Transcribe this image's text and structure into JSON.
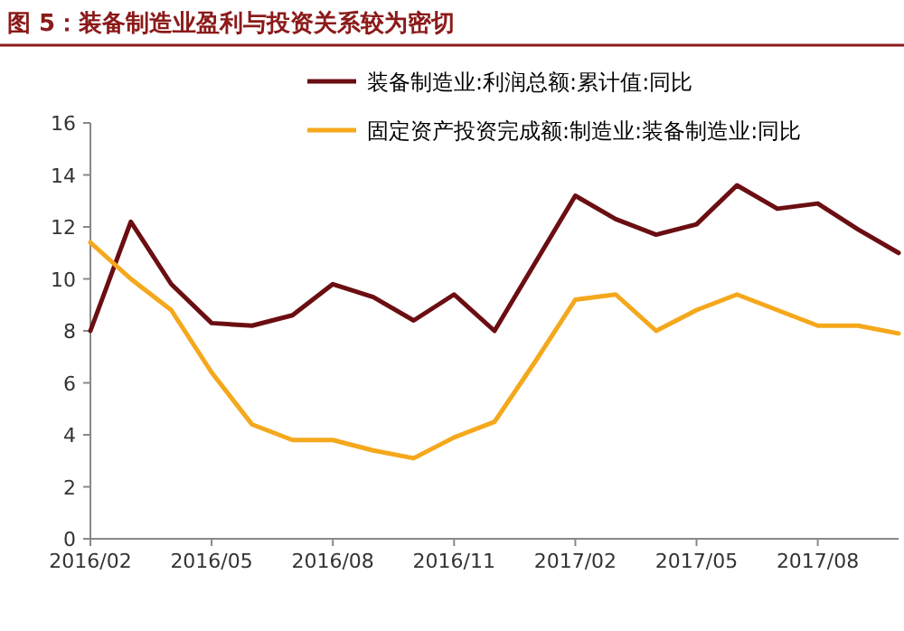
{
  "chart_data": {
    "type": "line",
    "title": "图 5：装备制造业盈利与投资关系较为密切",
    "x": [
      "2016-02",
      "2016-03",
      "2016-04",
      "2016-05",
      "2016-06",
      "2016-07",
      "2016-08",
      "2016-09",
      "2016-10",
      "2016-11",
      "2016-12",
      "2017-01",
      "2017-02",
      "2017-03",
      "2017-04",
      "2017-05",
      "2017-06",
      "2017-07",
      "2017-08",
      "2017-09",
      "2017-10"
    ],
    "series": [
      {
        "name": "装备制造业:利润总额:累计值:同比",
        "color": "#6b0e12",
        "values": [
          8.0,
          12.2,
          9.8,
          8.3,
          8.2,
          8.6,
          9.8,
          9.3,
          8.4,
          9.4,
          8.0,
          10.6,
          13.2,
          12.3,
          11.7,
          12.1,
          13.6,
          12.7,
          12.9,
          11.9,
          11.0
        ]
      },
      {
        "name": "固定资产投资完成额:制造业:装备制造业:同比",
        "color": "#f5a81c",
        "values": [
          11.4,
          10.0,
          8.8,
          6.4,
          4.4,
          3.8,
          3.8,
          3.4,
          3.1,
          3.9,
          4.5,
          6.8,
          9.2,
          9.4,
          8.0,
          8.8,
          9.4,
          8.8,
          8.2,
          8.2,
          7.9
        ]
      }
    ],
    "xlim": [
      "2016-02",
      "2017-10"
    ],
    "xticks": [
      {
        "value": "2016-02",
        "label": "2016/02"
      },
      {
        "value": "2016-05",
        "label": "2016/05"
      },
      {
        "value": "2016-08",
        "label": "2016/08"
      },
      {
        "value": "2016-11",
        "label": "2016/11"
      },
      {
        "value": "2017-02",
        "label": "2017/02"
      },
      {
        "value": "2017-05",
        "label": "2017/05"
      },
      {
        "value": "2017-08",
        "label": "2017/08"
      }
    ],
    "ylim": [
      0,
      16
    ],
    "yticks": [
      0,
      2,
      4,
      6,
      8,
      10,
      12,
      14,
      16
    ],
    "grid": false,
    "legend": "top",
    "marker": "none",
    "line_style": "solid"
  }
}
